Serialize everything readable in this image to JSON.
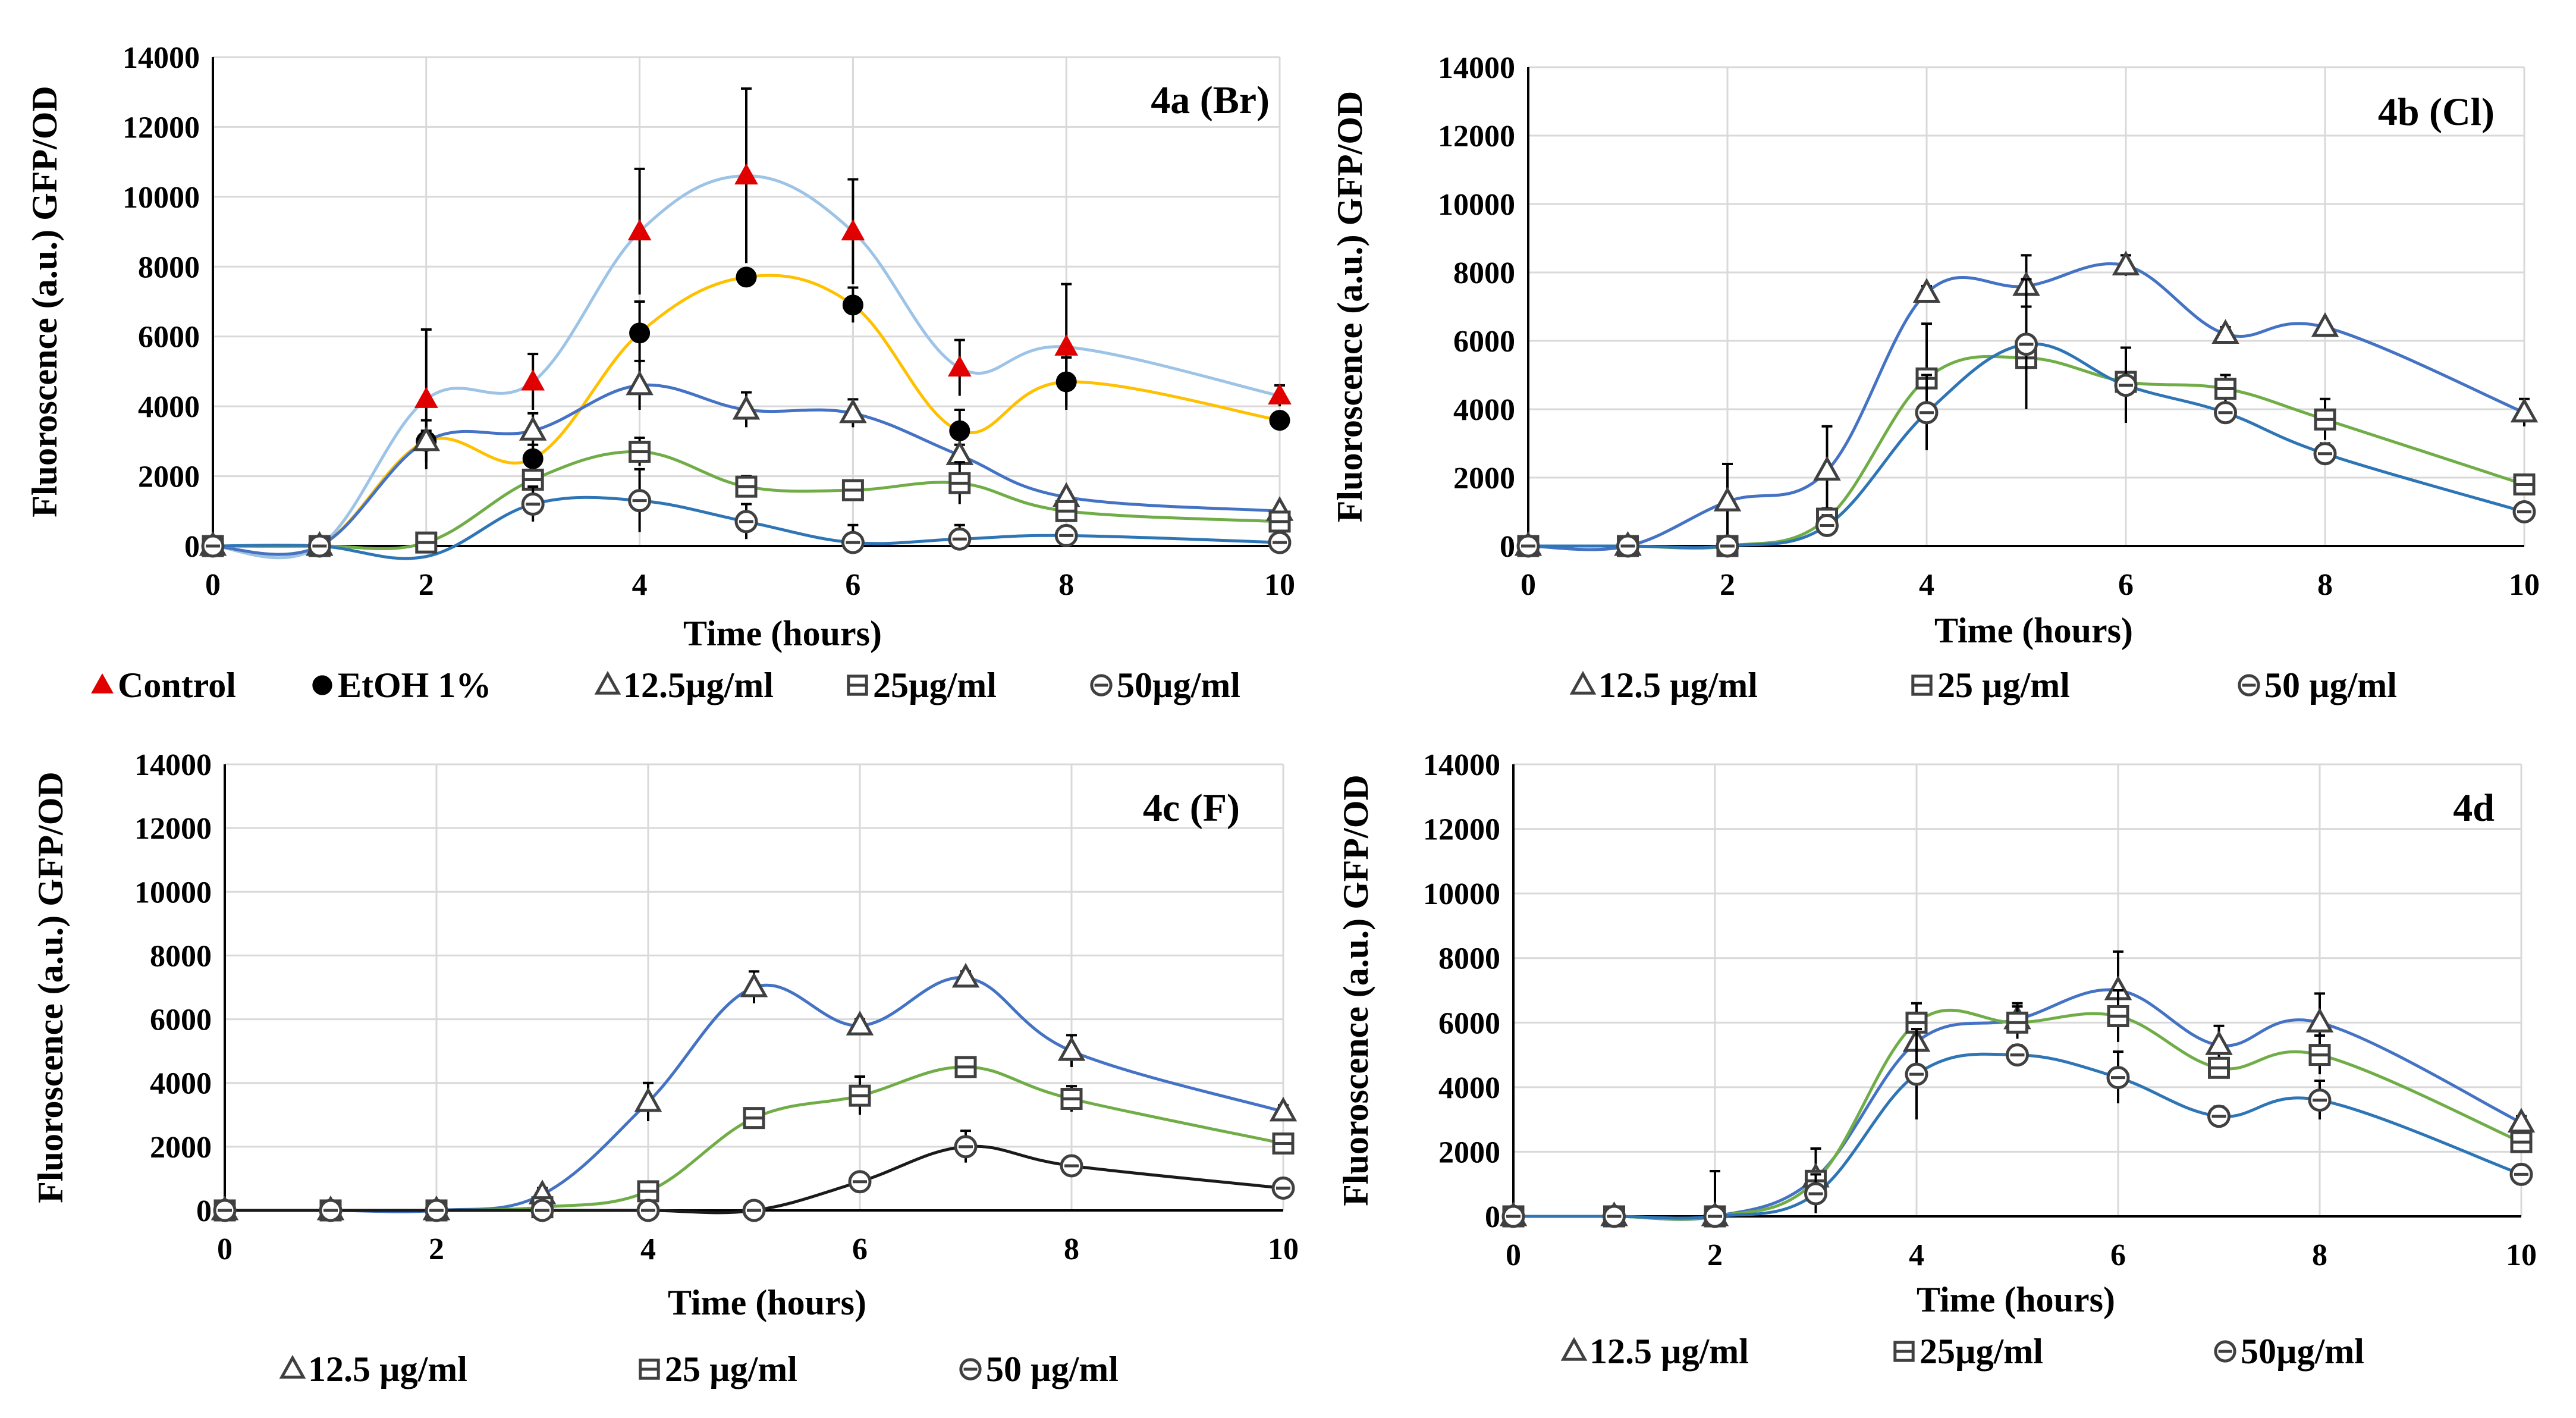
{
  "chart_data": [
    {
      "id": "4a",
      "type": "line",
      "title": "4a (Br)",
      "xlabel": "Time (hours)",
      "ylabel": "Fluoroscence (a.u.) GFP/OD",
      "xlim": [
        0,
        10
      ],
      "ylim": [
        0,
        14000
      ],
      "x_ticks": [
        0,
        2,
        4,
        6,
        8,
        10
      ],
      "y_ticks": [
        0,
        2000,
        4000,
        6000,
        8000,
        10000,
        12000,
        14000
      ],
      "x": [
        0,
        1,
        2,
        3,
        4,
        5,
        6,
        7,
        8,
        10
      ],
      "series": [
        {
          "name": "Control",
          "marker": "triangle-filled",
          "marker_color": "#e00000",
          "line_color": "#9dc3e6",
          "values": [
            0,
            0,
            4200,
            4700,
            9000,
            10600,
            9000,
            5100,
            5700,
            4300
          ],
          "errors": [
            0,
            0,
            2000,
            800,
            1800,
            2500,
            1500,
            800,
            1800,
            300
          ]
        },
        {
          "name": "EtOH 1%",
          "marker": "circle-filled",
          "marker_color": "#000000",
          "line_color": "#ffc000",
          "values": [
            0,
            0,
            3000,
            2500,
            6100,
            7700,
            6900,
            3300,
            4700,
            3600
          ],
          "errors": [
            0,
            0,
            600,
            400,
            900,
            0,
            500,
            600,
            700,
            0
          ]
        },
        {
          "name": "12.5µg/ml",
          "marker": "triangle-open",
          "marker_color": "#404040",
          "line_color": "#4472c4",
          "values": [
            0,
            0,
            3000,
            3300,
            4600,
            3900,
            3800,
            2600,
            1400,
            1000
          ],
          "errors": [
            0,
            0,
            300,
            500,
            700,
            500,
            400,
            300,
            150,
            100
          ]
        },
        {
          "name": "25µg/ml",
          "marker": "square-open",
          "marker_color": "#404040",
          "line_color": "#70ad47",
          "values": [
            0,
            0,
            100,
            1900,
            2700,
            1700,
            1600,
            1800,
            1000,
            700
          ],
          "errors": [
            0,
            0,
            100,
            500,
            400,
            300,
            200,
            600,
            200,
            100
          ]
        },
        {
          "name": "50µg/ml",
          "marker": "circle-open",
          "marker_color": "#404040",
          "line_color": "#2e75b6",
          "values": [
            0,
            0,
            -300,
            1200,
            1300,
            700,
            100,
            200,
            300,
            100
          ],
          "errors": [
            0,
            0,
            0,
            500,
            900,
            500,
            500,
            400,
            200,
            100
          ]
        }
      ],
      "legend": [
        "Control",
        "EtOH 1%",
        "12.5µg/ml",
        "25µg/ml",
        "50µg/ml"
      ]
    },
    {
      "id": "4b",
      "type": "line",
      "title": "4b (Cl)",
      "xlabel": "Time (hours)",
      "ylabel": "Fluoroscence (a.u.) GFP/OD",
      "xlim": [
        0,
        10
      ],
      "ylim": [
        0,
        14000
      ],
      "x_ticks": [
        0,
        2,
        4,
        6,
        8,
        10
      ],
      "y_ticks": [
        0,
        2000,
        4000,
        6000,
        8000,
        10000,
        12000,
        14000
      ],
      "x": [
        0,
        1,
        2,
        3,
        4,
        5,
        6,
        7,
        8,
        10
      ],
      "series": [
        {
          "name": "12.5 µg/ml",
          "marker": "triangle-open",
          "marker_color": "#404040",
          "line_color": "#4472c4",
          "values": [
            0,
            0,
            1300,
            2200,
            7400,
            7600,
            8200,
            6200,
            6400,
            3900
          ],
          "errors": [
            0,
            0,
            1100,
            1300,
            200,
            900,
            300,
            200,
            100,
            400
          ]
        },
        {
          "name": "25 µg/ml",
          "marker": "square-open",
          "marker_color": "#404040",
          "line_color": "#70ad47",
          "values": [
            0,
            0,
            0,
            800,
            4900,
            5500,
            4800,
            4600,
            3700,
            1800
          ],
          "errors": [
            0,
            0,
            0,
            300,
            1600,
            1500,
            1000,
            400,
            600,
            200
          ]
        },
        {
          "name": "50 µg/ml",
          "marker": "circle-open",
          "marker_color": "#404040",
          "line_color": "#2e75b6",
          "values": [
            0,
            0,
            0,
            600,
            3900,
            5900,
            4700,
            3900,
            2700,
            1000
          ],
          "errors": [
            0,
            0,
            0,
            300,
            1100,
            1900,
            1100,
            200,
            300,
            100
          ]
        }
      ],
      "legend": [
        "12.5 µg/ml",
        "25 µg/ml",
        "50 µg/ml"
      ]
    },
    {
      "id": "4c",
      "type": "line",
      "title": "4c (F)",
      "xlabel": "Time (hours)",
      "ylabel": "Fluoroscence (a.u.) GFP/OD",
      "xlim": [
        0,
        10
      ],
      "ylim": [
        0,
        14000
      ],
      "x_ticks": [
        0,
        2,
        4,
        6,
        8,
        10
      ],
      "y_ticks": [
        0,
        2000,
        4000,
        6000,
        8000,
        10000,
        12000,
        14000
      ],
      "x": [
        0,
        1,
        2,
        3,
        4,
        5,
        6,
        7,
        8,
        10
      ],
      "series": [
        {
          "name": "12.5 µg/ml",
          "marker": "triangle-open",
          "marker_color": "#404040",
          "line_color": "#4472c4",
          "values": [
            0,
            0,
            0,
            500,
            3400,
            7000,
            5800,
            7300,
            5000,
            3100
          ],
          "errors": [
            0,
            0,
            0,
            200,
            600,
            500,
            200,
            200,
            500,
            200
          ]
        },
        {
          "name": "25 µg/ml",
          "marker": "square-open",
          "marker_color": "#404040",
          "line_color": "#70ad47",
          "values": [
            0,
            0,
            0,
            100,
            600,
            2900,
            3600,
            4500,
            3500,
            2100
          ],
          "errors": [
            0,
            0,
            0,
            100,
            100,
            100,
            600,
            200,
            400,
            200
          ]
        },
        {
          "name": "50 µg/ml",
          "marker": "circle-open",
          "marker_color": "#404040",
          "line_color": "#1a1a1a",
          "values": [
            0,
            0,
            0,
            0,
            0,
            0,
            900,
            2000,
            1400,
            700
          ],
          "errors": [
            0,
            0,
            0,
            0,
            0,
            0,
            200,
            500,
            200,
            100
          ]
        }
      ],
      "legend": [
        "12.5 µg/ml",
        "25 µg/ml",
        "50 µg/ml"
      ]
    },
    {
      "id": "4d",
      "type": "line",
      "title": "4d",
      "xlabel": "Time (hours)",
      "ylabel": "Fluoroscence (a.u.) GFP/OD",
      "xlim": [
        0,
        10
      ],
      "ylim": [
        0,
        14000
      ],
      "x_ticks": [
        0,
        2,
        4,
        6,
        8,
        10
      ],
      "y_ticks": [
        0,
        2000,
        4000,
        6000,
        8000,
        10000,
        12000,
        14000
      ],
      "x": [
        0,
        1,
        2,
        3,
        4,
        5,
        6,
        7,
        8,
        10
      ],
      "series": [
        {
          "name": "12.5 µg/ml",
          "marker": "triangle-open",
          "marker_color": "#404040",
          "line_color": "#4472c4",
          "values": [
            0,
            0,
            0,
            1200,
            5400,
            6100,
            7000,
            5300,
            6000,
            2900
          ],
          "errors": [
            0,
            0,
            1400,
            900,
            700,
            500,
            1200,
            600,
            900,
            200
          ]
        },
        {
          "name": "25µg/ml",
          "marker": "square-open",
          "marker_color": "#404040",
          "line_color": "#70ad47",
          "values": [
            0,
            0,
            0,
            1100,
            6000,
            6000,
            6200,
            4600,
            5000,
            2300
          ],
          "errors": [
            0,
            0,
            0,
            300,
            600,
            500,
            800,
            300,
            600,
            200
          ]
        },
        {
          "name": "50µg/ml",
          "marker": "circle-open",
          "marker_color": "#404040",
          "line_color": "#2e75b6",
          "values": [
            0,
            0,
            0,
            700,
            4400,
            5000,
            4300,
            3100,
            3600,
            1300
          ],
          "errors": [
            0,
            0,
            0,
            600,
            1400,
            300,
            800,
            300,
            600,
            100
          ]
        }
      ],
      "legend": [
        "12.5 µg/ml",
        "25µg/ml",
        "50µg/ml"
      ]
    }
  ]
}
